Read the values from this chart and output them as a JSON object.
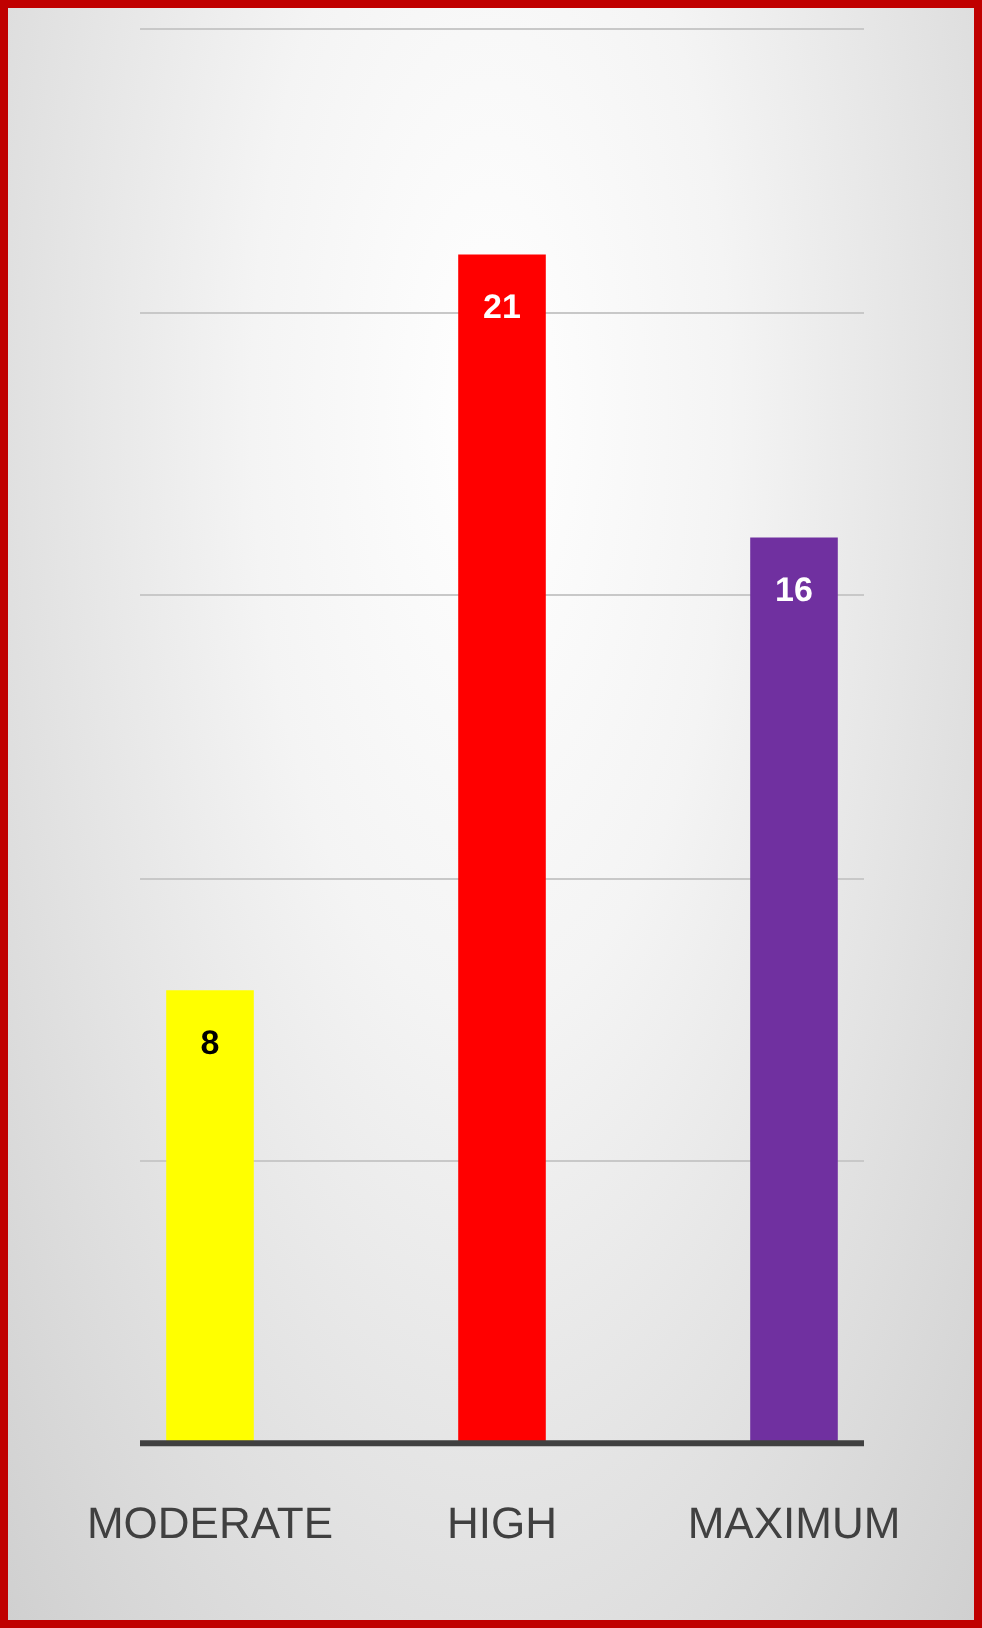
{
  "chart_data": {
    "type": "bar",
    "categories": [
      "MODERATE",
      "HIGH",
      "MAXIMUM"
    ],
    "values": [
      8,
      21,
      16
    ],
    "colors": [
      "#ffff00",
      "#ff0000",
      "#7030a0"
    ],
    "ylim": [
      0,
      25
    ],
    "yticks": [
      {
        "value": 5,
        "label": null
      },
      {
        "value": 10,
        "label": null
      },
      {
        "value": 15,
        "label": null
      },
      {
        "value": 20,
        "label": null
      },
      {
        "value": 25,
        "label": null
      }
    ],
    "grid": "y",
    "tick_labels": "x",
    "data_labels": true
  }
}
